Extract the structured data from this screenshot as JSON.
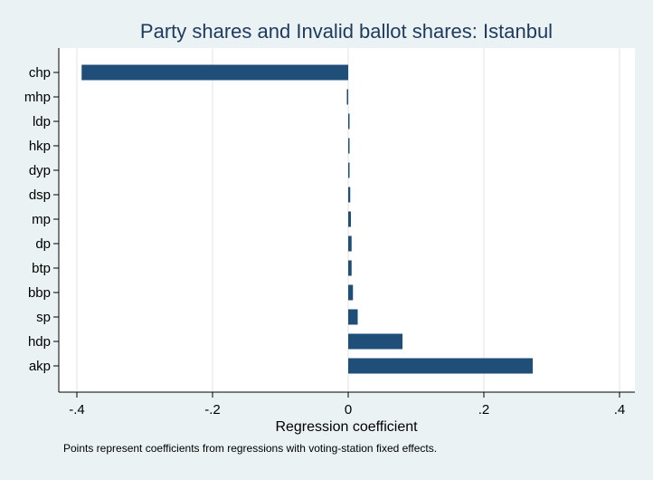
{
  "chart_data": {
    "type": "bar",
    "orientation": "horizontal",
    "title": "Party shares and Invalid ballot shares: Istanbul",
    "xlabel": "Regression coefficient",
    "ylabel": "",
    "note": "Points represent coefficients from regressions with voting-station fixed effects.",
    "categories": [
      "chp",
      "mhp",
      "ldp",
      "hkp",
      "dyp",
      "dsp",
      "mp",
      "dp",
      "btp",
      "bbp",
      "sp",
      "hdp",
      "akp"
    ],
    "values": [
      -0.393,
      -0.001,
      0.0,
      0.001,
      0.002,
      0.003,
      0.004,
      0.005,
      0.005,
      0.007,
      0.014,
      0.08,
      0.272
    ],
    "xlim": [
      -0.4,
      0.4
    ],
    "xticks": [
      -0.4,
      -0.2,
      0,
      0.2,
      0.4
    ],
    "xtick_labels": [
      "-.4",
      "-.2",
      "0",
      ".2",
      ".4"
    ],
    "grid": true,
    "bar_color": "#1f4e79",
    "background_color": "#eaf2f3",
    "plot_background_color": "#ffffff",
    "title_color": "#1e3a5f"
  }
}
